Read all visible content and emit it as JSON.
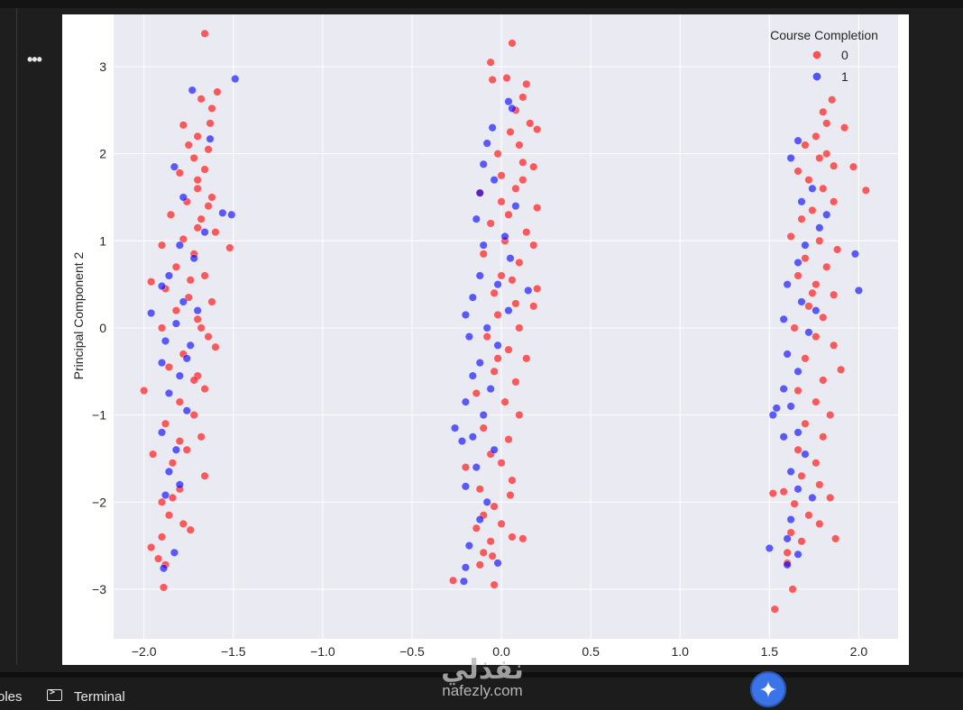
{
  "menu": {
    "more_label": "•••"
  },
  "bottom_bar": {
    "left_partial_label": "oles",
    "terminal_label": "Terminal"
  },
  "watermark": {
    "arabic": "نفذلي",
    "latin": "nafezly.com"
  },
  "icons": {
    "terminal": "terminal-icon",
    "fab": "sparkle-icon",
    "more": "more-icon"
  },
  "colors": {
    "class0": "#ff0000",
    "class1": "#0000ff",
    "plot_bg": "#eaeaf2",
    "grid": "#ffffff"
  },
  "chart_data": {
    "type": "scatter",
    "title": "",
    "xlabel": "",
    "ylabel": "Principal Component 2",
    "xlim": [
      -2.17,
      2.22
    ],
    "ylim": [
      -3.57,
      3.6
    ],
    "xticks": [
      -2.0,
      -1.5,
      -1.0,
      -0.5,
      0.0,
      0.5,
      1.0,
      1.5,
      2.0
    ],
    "xtick_labels": [
      "−2.0",
      "−1.5",
      "−1.0",
      "−0.5",
      "0.0",
      "0.5",
      "1.0",
      "1.5",
      "2.0"
    ],
    "yticks": [
      -3,
      -2,
      -1,
      0,
      1,
      2,
      3
    ],
    "ytick_labels": [
      "−3",
      "−2",
      "−1",
      "0",
      "1",
      "2",
      "3"
    ],
    "grid": true,
    "legend": {
      "title": "Course Completion",
      "placement": "top-right",
      "entries": [
        "0",
        "1"
      ]
    },
    "series": [
      {
        "name": "0",
        "color": "#ff0000",
        "points": [
          [
            -1.66,
            3.38
          ],
          [
            -1.59,
            2.71
          ],
          [
            -1.62,
            2.52
          ],
          [
            -1.68,
            2.63
          ],
          [
            -1.63,
            2.35
          ],
          [
            -1.7,
            2.2
          ],
          [
            -1.75,
            2.1
          ],
          [
            -1.78,
            2.33
          ],
          [
            -1.64,
            2.05
          ],
          [
            -1.72,
            1.95
          ],
          [
            -1.66,
            1.82
          ],
          [
            -1.8,
            1.78
          ],
          [
            -1.7,
            1.6
          ],
          [
            -1.62,
            1.5
          ],
          [
            -1.76,
            1.45
          ],
          [
            -1.85,
            1.3
          ],
          [
            -1.68,
            1.25
          ],
          [
            -1.6,
            1.1
          ],
          [
            -1.78,
            1.02
          ],
          [
            -1.9,
            0.95
          ],
          [
            -1.52,
            0.92
          ],
          [
            -1.72,
            0.85
          ],
          [
            -1.82,
            0.7
          ],
          [
            -1.66,
            0.6
          ],
          [
            -1.96,
            0.53
          ],
          [
            -1.88,
            0.45
          ],
          [
            -1.75,
            0.35
          ],
          [
            -1.62,
            0.3
          ],
          [
            -1.82,
            0.2
          ],
          [
            -1.7,
            0.1
          ],
          [
            -1.9,
            0.0
          ],
          [
            -1.64,
            -0.1
          ],
          [
            -1.6,
            -0.22
          ],
          [
            -1.78,
            -0.3
          ],
          [
            -1.86,
            -0.45
          ],
          [
            -1.7,
            -0.55
          ],
          [
            -1.66,
            -0.7
          ],
          [
            -2.0,
            -0.72
          ],
          [
            -1.8,
            -0.85
          ],
          [
            -1.72,
            -1.0
          ],
          [
            -1.88,
            -1.1
          ],
          [
            -1.68,
            -1.25
          ],
          [
            -1.76,
            -1.4
          ],
          [
            -1.84,
            -1.55
          ],
          [
            -1.66,
            -1.7
          ],
          [
            -1.95,
            -1.45
          ],
          [
            -1.8,
            -1.85
          ],
          [
            -1.9,
            -2.0
          ],
          [
            -1.86,
            -2.15
          ],
          [
            -1.78,
            -2.25
          ],
          [
            -1.74,
            -2.32
          ],
          [
            -1.9,
            -2.4
          ],
          [
            -1.96,
            -2.52
          ],
          [
            -1.92,
            -2.65
          ],
          [
            -1.88,
            -2.72
          ],
          [
            -1.89,
            -2.98
          ],
          [
            -1.64,
            1.4
          ],
          [
            -1.7,
            1.15
          ],
          [
            -1.74,
            0.55
          ],
          [
            -1.68,
            0.0
          ],
          [
            -1.72,
            -0.6
          ],
          [
            -1.8,
            -1.3
          ],
          [
            -1.84,
            -1.95
          ],
          [
            -1.7,
            1.7
          ],
          [
            0.06,
            3.27
          ],
          [
            -0.06,
            3.05
          ],
          [
            0.03,
            2.87
          ],
          [
            -0.05,
            2.85
          ],
          [
            0.14,
            2.8
          ],
          [
            0.12,
            2.65
          ],
          [
            0.08,
            2.5
          ],
          [
            0.16,
            2.35
          ],
          [
            0.2,
            2.28
          ],
          [
            0.05,
            2.25
          ],
          [
            0.1,
            2.1
          ],
          [
            -0.02,
            2.0
          ],
          [
            0.12,
            1.9
          ],
          [
            0.18,
            1.85
          ],
          [
            0.0,
            1.75
          ],
          [
            0.08,
            1.6
          ],
          [
            -0.12,
            1.55
          ],
          [
            0.2,
            1.38
          ],
          [
            0.04,
            1.3
          ],
          [
            -0.06,
            1.2
          ],
          [
            0.14,
            1.1
          ],
          [
            0.02,
            1.0
          ],
          [
            0.18,
            0.95
          ],
          [
            -0.1,
            0.85
          ],
          [
            0.1,
            0.75
          ],
          [
            0.0,
            0.6
          ],
          [
            0.2,
            0.45
          ],
          [
            -0.04,
            0.4
          ],
          [
            0.08,
            0.28
          ],
          [
            0.18,
            0.25
          ],
          [
            -0.02,
            0.15
          ],
          [
            0.1,
            0.0
          ],
          [
            -0.08,
            -0.1
          ],
          [
            0.04,
            -0.25
          ],
          [
            0.14,
            -0.35
          ],
          [
            -0.04,
            -0.5
          ],
          [
            0.08,
            -0.62
          ],
          [
            -0.14,
            -0.75
          ],
          [
            0.02,
            -0.85
          ],
          [
            0.1,
            -1.0
          ],
          [
            -0.1,
            -1.15
          ],
          [
            0.04,
            -1.28
          ],
          [
            -0.06,
            -1.45
          ],
          [
            0.0,
            -1.55
          ],
          [
            -0.2,
            -1.6
          ],
          [
            0.06,
            -1.75
          ],
          [
            -0.12,
            -1.85
          ],
          [
            0.05,
            -1.92
          ],
          [
            -0.04,
            -2.05
          ],
          [
            -0.1,
            -2.15
          ],
          [
            0.0,
            -2.25
          ],
          [
            -0.14,
            -2.3
          ],
          [
            -0.06,
            -2.45
          ],
          [
            0.06,
            -2.4
          ],
          [
            0.12,
            -2.42
          ],
          [
            -0.1,
            -2.58
          ],
          [
            -0.12,
            -2.72
          ],
          [
            -0.05,
            -2.62
          ],
          [
            -0.27,
            -2.9
          ],
          [
            -0.04,
            -2.95
          ],
          [
            0.0,
            1.45
          ],
          [
            0.06,
            0.55
          ],
          [
            0.12,
            1.7
          ],
          [
            -0.02,
            -0.35
          ],
          [
            1.85,
            2.62
          ],
          [
            1.92,
            2.3
          ],
          [
            1.8,
            2.48
          ],
          [
            1.82,
            2.35
          ],
          [
            1.76,
            2.2
          ],
          [
            1.7,
            2.1
          ],
          [
            1.78,
            1.95
          ],
          [
            1.86,
            1.86
          ],
          [
            1.97,
            1.85
          ],
          [
            1.66,
            1.8
          ],
          [
            1.72,
            1.7
          ],
          [
            1.8,
            1.6
          ],
          [
            2.04,
            1.58
          ],
          [
            1.86,
            1.45
          ],
          [
            1.74,
            1.35
          ],
          [
            1.68,
            1.25
          ],
          [
            1.62,
            1.05
          ],
          [
            1.78,
            1.0
          ],
          [
            1.88,
            0.9
          ],
          [
            1.7,
            0.8
          ],
          [
            1.82,
            0.7
          ],
          [
            1.66,
            0.6
          ],
          [
            1.76,
            0.5
          ],
          [
            1.86,
            0.38
          ],
          [
            1.72,
            0.25
          ],
          [
            1.8,
            0.12
          ],
          [
            1.64,
            0.0
          ],
          [
            1.76,
            -0.1
          ],
          [
            1.86,
            -0.2
          ],
          [
            1.7,
            -0.35
          ],
          [
            1.9,
            -0.48
          ],
          [
            1.8,
            -0.6
          ],
          [
            1.66,
            -0.72
          ],
          [
            1.76,
            -0.85
          ],
          [
            1.84,
            -1.0
          ],
          [
            1.7,
            -1.1
          ],
          [
            1.8,
            -1.25
          ],
          [
            1.66,
            -1.4
          ],
          [
            1.76,
            -1.55
          ],
          [
            1.68,
            -1.7
          ],
          [
            1.78,
            -1.8
          ],
          [
            1.58,
            -1.88
          ],
          [
            1.52,
            -1.9
          ],
          [
            1.84,
            -1.95
          ],
          [
            1.64,
            -2.02
          ],
          [
            1.72,
            -2.15
          ],
          [
            1.78,
            -2.25
          ],
          [
            1.62,
            -2.35
          ],
          [
            1.68,
            -2.45
          ],
          [
            1.87,
            -2.42
          ],
          [
            1.6,
            -2.58
          ],
          [
            1.6,
            -2.7
          ],
          [
            1.63,
            -3.0
          ],
          [
            1.53,
            -3.23
          ],
          [
            1.82,
            2.0
          ],
          [
            1.74,
            0.4
          ]
        ]
      },
      {
        "name": "1",
        "color": "#0000ff",
        "points": [
          [
            -1.49,
            2.86
          ],
          [
            -1.73,
            2.73
          ],
          [
            -1.63,
            2.17
          ],
          [
            -1.83,
            1.85
          ],
          [
            -1.78,
            1.5
          ],
          [
            -1.51,
            1.3
          ],
          [
            -1.56,
            1.32
          ],
          [
            -1.66,
            1.1
          ],
          [
            -1.8,
            0.95
          ],
          [
            -1.72,
            0.8
          ],
          [
            -1.86,
            0.6
          ],
          [
            -1.9,
            0.48
          ],
          [
            -1.96,
            0.17
          ],
          [
            -1.78,
            0.3
          ],
          [
            -1.82,
            0.05
          ],
          [
            -1.88,
            -0.15
          ],
          [
            -1.74,
            -0.2
          ],
          [
            -1.9,
            -0.4
          ],
          [
            -1.8,
            -0.55
          ],
          [
            -1.86,
            -0.75
          ],
          [
            -1.76,
            -0.95
          ],
          [
            -1.9,
            -1.2
          ],
          [
            -1.82,
            -1.4
          ],
          [
            -1.86,
            -1.65
          ],
          [
            -1.8,
            -1.8
          ],
          [
            -1.88,
            -1.92
          ],
          [
            -1.83,
            -2.58
          ],
          [
            -1.89,
            -2.76
          ],
          [
            -1.7,
            0.2
          ],
          [
            -1.76,
            -0.35
          ],
          [
            0.04,
            2.6
          ],
          [
            -0.05,
            2.3
          ],
          [
            -0.08,
            2.12
          ],
          [
            -0.1,
            1.88
          ],
          [
            -0.04,
            1.7
          ],
          [
            -0.12,
            1.55
          ],
          [
            0.08,
            1.4
          ],
          [
            -0.14,
            1.25
          ],
          [
            0.02,
            1.05
          ],
          [
            -0.1,
            0.95
          ],
          [
            0.05,
            0.8
          ],
          [
            -0.12,
            0.6
          ],
          [
            -0.02,
            0.5
          ],
          [
            -0.16,
            0.35
          ],
          [
            0.04,
            0.2
          ],
          [
            -0.2,
            0.15
          ],
          [
            -0.08,
            0.0
          ],
          [
            -0.18,
            -0.1
          ],
          [
            -0.02,
            -0.2
          ],
          [
            -0.12,
            -0.4
          ],
          [
            -0.16,
            -0.55
          ],
          [
            -0.06,
            -0.7
          ],
          [
            -0.2,
            -0.85
          ],
          [
            -0.1,
            -1.0
          ],
          [
            -0.26,
            -1.15
          ],
          [
            -0.16,
            -1.25
          ],
          [
            -0.22,
            -1.3
          ],
          [
            -0.04,
            -1.4
          ],
          [
            -0.14,
            -1.6
          ],
          [
            -0.2,
            -1.82
          ],
          [
            -0.08,
            -2.0
          ],
          [
            -0.12,
            -2.2
          ],
          [
            -0.18,
            -2.5
          ],
          [
            -0.2,
            -2.75
          ],
          [
            -0.21,
            -2.91
          ],
          [
            -0.02,
            -2.7
          ],
          [
            0.15,
            0.43
          ],
          [
            0.06,
            2.52
          ],
          [
            1.66,
            2.15
          ],
          [
            1.62,
            1.95
          ],
          [
            1.74,
            1.6
          ],
          [
            1.68,
            1.45
          ],
          [
            1.78,
            1.15
          ],
          [
            1.7,
            0.95
          ],
          [
            1.66,
            0.75
          ],
          [
            1.98,
            0.85
          ],
          [
            2.0,
            0.43
          ],
          [
            1.6,
            0.5
          ],
          [
            1.68,
            0.3
          ],
          [
            1.58,
            0.1
          ],
          [
            1.72,
            -0.05
          ],
          [
            1.6,
            -0.3
          ],
          [
            1.66,
            -0.5
          ],
          [
            1.58,
            -0.7
          ],
          [
            1.62,
            -0.9
          ],
          [
            1.54,
            -0.92
          ],
          [
            1.52,
            -1.0
          ],
          [
            1.66,
            -1.2
          ],
          [
            1.58,
            -1.25
          ],
          [
            1.7,
            -1.45
          ],
          [
            1.62,
            -1.65
          ],
          [
            1.66,
            -1.85
          ],
          [
            1.74,
            -1.95
          ],
          [
            1.62,
            -2.2
          ],
          [
            1.6,
            -2.42
          ],
          [
            1.5,
            -2.53
          ],
          [
            1.66,
            -2.6
          ],
          [
            1.6,
            -2.72
          ],
          [
            1.82,
            1.3
          ],
          [
            1.76,
            0.2
          ]
        ]
      }
    ]
  }
}
